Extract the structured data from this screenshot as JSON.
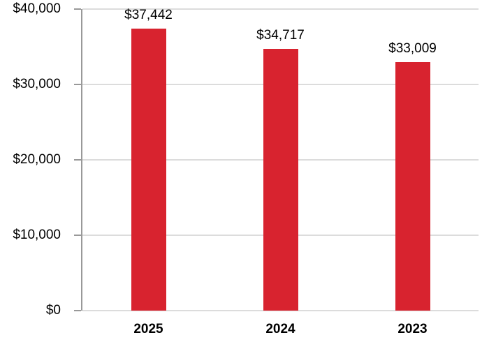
{
  "chart_data": {
    "type": "bar",
    "categories": [
      "2025",
      "2024",
      "2023"
    ],
    "values": [
      37442,
      34717,
      33009
    ],
    "value_labels": [
      "$37,442",
      "$34,717",
      "$33,009"
    ],
    "title": "",
    "xlabel": "",
    "ylabel": "",
    "ylim": [
      0,
      40000
    ],
    "yticks": [
      0,
      10000,
      20000,
      30000,
      40000
    ],
    "ytick_labels": [
      "$0",
      "$10,000",
      "$20,000",
      "$30,000",
      "$40,000"
    ],
    "grid": true,
    "legend_position": "none",
    "colors": {
      "bar": "#D8232F",
      "axis": "#999999",
      "gridline": "#DCDCDC",
      "text": "#000000",
      "background": "#FFFFFF"
    }
  }
}
